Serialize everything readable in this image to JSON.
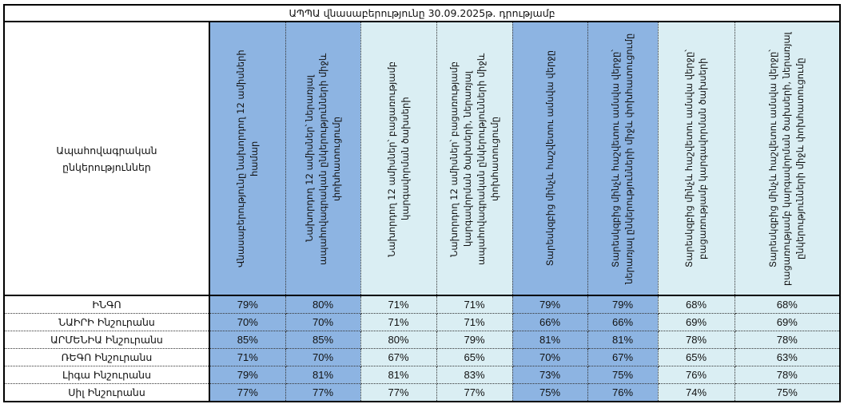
{
  "title": "ԱՊՊԱ վնասաբերությունը 30.09.2025թ. դրությամբ",
  "corner_header": "Ապահովագրական ընկերություններ",
  "colors": {
    "dark_column": "#8DB4E2",
    "light_column": "#DAEEF3"
  },
  "columns": [
    {
      "label": "Վնասաբերությունը նախորդող 12 ամիսների համար",
      "shade": "dark"
    },
    {
      "label": "Նախորդող 12 ամիսներ՝ ներառյալ ապահովագրական ընկերությունների միջև փոխհատուցումը",
      "shade": "dark"
    },
    {
      "label": "Նախորդող 12 ամիսներ՝ բացառությամբ կարգավորման ծախսերի",
      "shade": "light"
    },
    {
      "label": "Նախորդող 12 ամիսներ՝ բացառությամբ կարգավորման ծախսերի, ներառյալ ապահովագրական ընկերությունների միջև փոխհատուցումը",
      "shade": "light"
    },
    {
      "label": "Տարեսկզբից մինչև հաշվետու ամսվա վերջը",
      "shade": "dark"
    },
    {
      "label": "Տարեսկզբից մինչև հաշվետու ամսվա վերջը՝ ներառյալ ընկերությունների միջև փոխհատուցումը",
      "shade": "dark"
    },
    {
      "label": "Տարեսկզբից մինչև հաշվետու ամսվա վերջը՝ բացառությամբ կարգավորման ծախսերի",
      "shade": "light"
    },
    {
      "label": "Տարեսկզբից մինչև հաշվետու ամսվա վերջը՝ բացառությամբ կարգավորման ծախսերի, ներառյալ ընկերությունների միջև փոխհատուցումը",
      "shade": "light"
    }
  ],
  "rows": [
    {
      "name": "ԻՆԳՈ",
      "values": [
        "79%",
        "80%",
        "71%",
        "71%",
        "79%",
        "79%",
        "68%",
        "68%"
      ]
    },
    {
      "name": "ՆԱԻՐԻ Ինշուրանս",
      "values": [
        "70%",
        "70%",
        "71%",
        "71%",
        "66%",
        "66%",
        "69%",
        "69%"
      ]
    },
    {
      "name": "ԱՐՄԵՆԻԱ Ինշուրանս",
      "values": [
        "85%",
        "85%",
        "80%",
        "79%",
        "81%",
        "81%",
        "78%",
        "78%"
      ]
    },
    {
      "name": "ՌԵԳՈ Ինշուրանս",
      "values": [
        "71%",
        "70%",
        "67%",
        "65%",
        "70%",
        "67%",
        "65%",
        "63%"
      ]
    },
    {
      "name": "Լիգա Ինշուրանս",
      "values": [
        "79%",
        "81%",
        "81%",
        "83%",
        "73%",
        "75%",
        "76%",
        "78%"
      ]
    },
    {
      "name": "Սիլ Ինշուրանս",
      "values": [
        "77%",
        "77%",
        "77%",
        "77%",
        "75%",
        "76%",
        "74%",
        "75%"
      ]
    }
  ]
}
